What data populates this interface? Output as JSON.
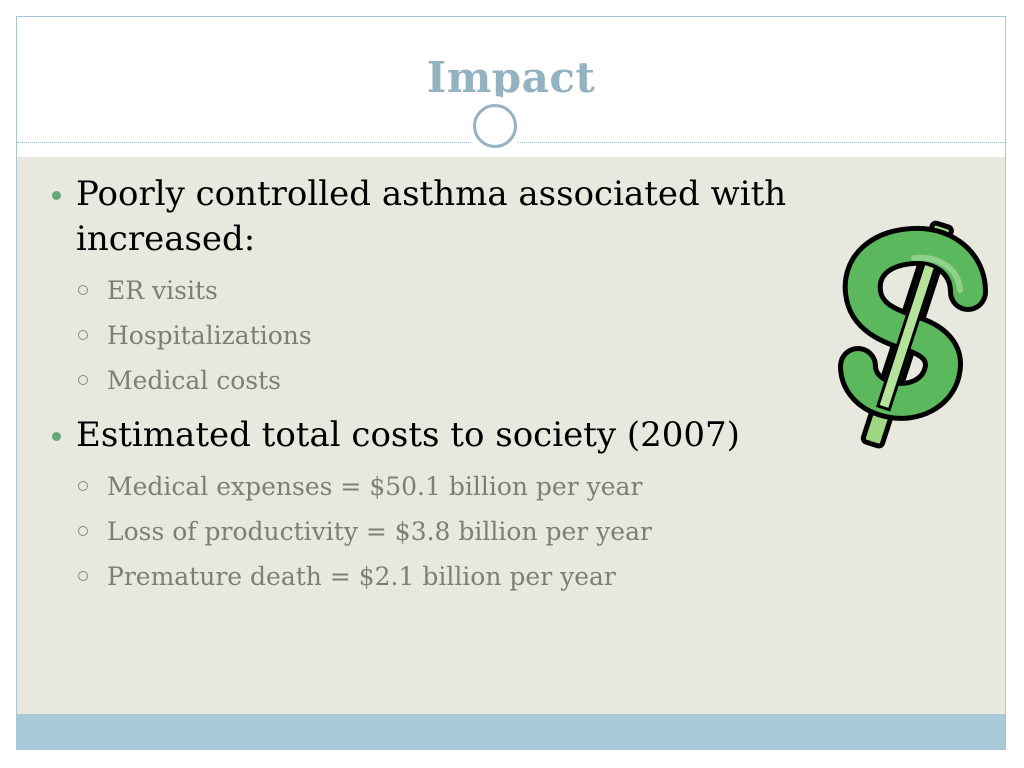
{
  "slide": {
    "title": "Impact",
    "bullets": [
      {
        "text": "Poorly controlled asthma associated with increased:",
        "sub": [
          "ER visits",
          "Hospitalizations",
          "Medical costs"
        ]
      },
      {
        "text": "Estimated total costs to society (2007)",
        "sub": [
          "Medical expenses = $50.1 billion per year",
          "Loss of productivity = $3.8 billion per year",
          "Premature death = $2.1 billion per year"
        ]
      }
    ]
  },
  "icons": {
    "title_ornament": "circle-ornament-icon",
    "clipart": "dollar-sign-icon",
    "bullet": "bullet-dot-icon",
    "sub_bullet": "hollow-circle-icon"
  },
  "colors": {
    "title": "#93b3c2",
    "content_bg": "#e9e8de",
    "footer": "#a7cbd8",
    "bullet_dot": "#6aa67a",
    "sub_text": "#7e7e74",
    "dollar_fill": "#5cb85c",
    "dollar_inner": "#9ed882"
  }
}
